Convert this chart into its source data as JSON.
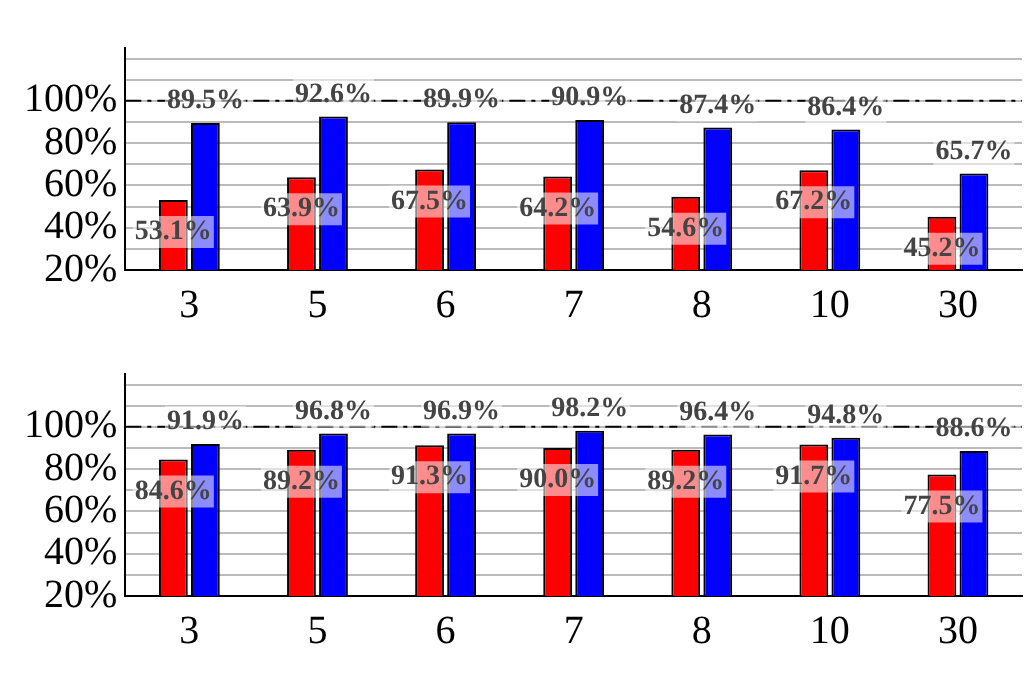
{
  "chart_data": [
    {
      "type": "bar",
      "categories": [
        "3",
        "5",
        "6",
        "7",
        "8",
        "10",
        "30"
      ],
      "series": [
        {
          "color": "#ff0000",
          "values": [
            53.1,
            63.9,
            67.5,
            64.2,
            54.6,
            67.2,
            45.2
          ]
        },
        {
          "color": "#0000ff",
          "values": [
            89.5,
            92.6,
            89.9,
            90.9,
            87.4,
            86.4,
            65.7
          ]
        }
      ],
      "value_labels": [
        [
          "53.1%",
          "63.9%",
          "67.5%",
          "64.2%",
          "54.6%",
          "67.2%",
          "45.2%"
        ],
        [
          "89.5%",
          "92.6%",
          "89.9%",
          "90.9%",
          "87.4%",
          "86.4%",
          "65.7%"
        ]
      ],
      "ylim": [
        20,
        125
      ],
      "yticks": [
        {
          "value": 20,
          "label": "20%"
        },
        {
          "value": 30,
          "label": null
        },
        {
          "value": 40,
          "label": "40%"
        },
        {
          "value": 50,
          "label": null
        },
        {
          "value": 60,
          "label": "60%"
        },
        {
          "value": 70,
          "label": null
        },
        {
          "value": 80,
          "label": "80%"
        },
        {
          "value": 90,
          "label": null
        },
        {
          "value": 100,
          "label": "100%"
        },
        {
          "value": 110,
          "label": null
        },
        {
          "value": 120,
          "label": null
        }
      ],
      "grid": "y",
      "legend": false,
      "ref_lines": [
        {
          "axis": "y",
          "value": 100,
          "label": null,
          "color": "#000000",
          "line_style": "dashed"
        }
      ]
    },
    {
      "type": "bar",
      "categories": [
        "3",
        "5",
        "6",
        "7",
        "8",
        "10",
        "30"
      ],
      "series": [
        {
          "color": "#ff0000",
          "values": [
            84.6,
            89.2,
            91.3,
            90.0,
            89.2,
            91.7,
            77.5
          ]
        },
        {
          "color": "#0000ff",
          "values": [
            91.9,
            96.8,
            96.9,
            98.2,
            96.4,
            94.8,
            88.6
          ]
        }
      ],
      "value_labels": [
        [
          "84.6%",
          "89.2%",
          "91.3%",
          "90.0%",
          "89.2%",
          "91.7%",
          "77.5%"
        ],
        [
          "91.9%",
          "96.8%",
          "96.9%",
          "98.2%",
          "96.4%",
          "94.8%",
          "88.6%"
        ]
      ],
      "ylim": [
        20,
        125
      ],
      "yticks": [
        {
          "value": 20,
          "label": "20%"
        },
        {
          "value": 30,
          "label": null
        },
        {
          "value": 40,
          "label": "40%"
        },
        {
          "value": 50,
          "label": null
        },
        {
          "value": 60,
          "label": "60%"
        },
        {
          "value": 70,
          "label": null
        },
        {
          "value": 80,
          "label": "80%"
        },
        {
          "value": 90,
          "label": null
        },
        {
          "value": 100,
          "label": "100%"
        },
        {
          "value": 110,
          "label": null
        },
        {
          "value": 120,
          "label": null
        }
      ],
      "grid": "y",
      "legend": false,
      "ref_lines": [
        {
          "axis": "y",
          "value": 100,
          "label": null,
          "color": "#000000",
          "line_style": "dashed"
        }
      ]
    }
  ]
}
